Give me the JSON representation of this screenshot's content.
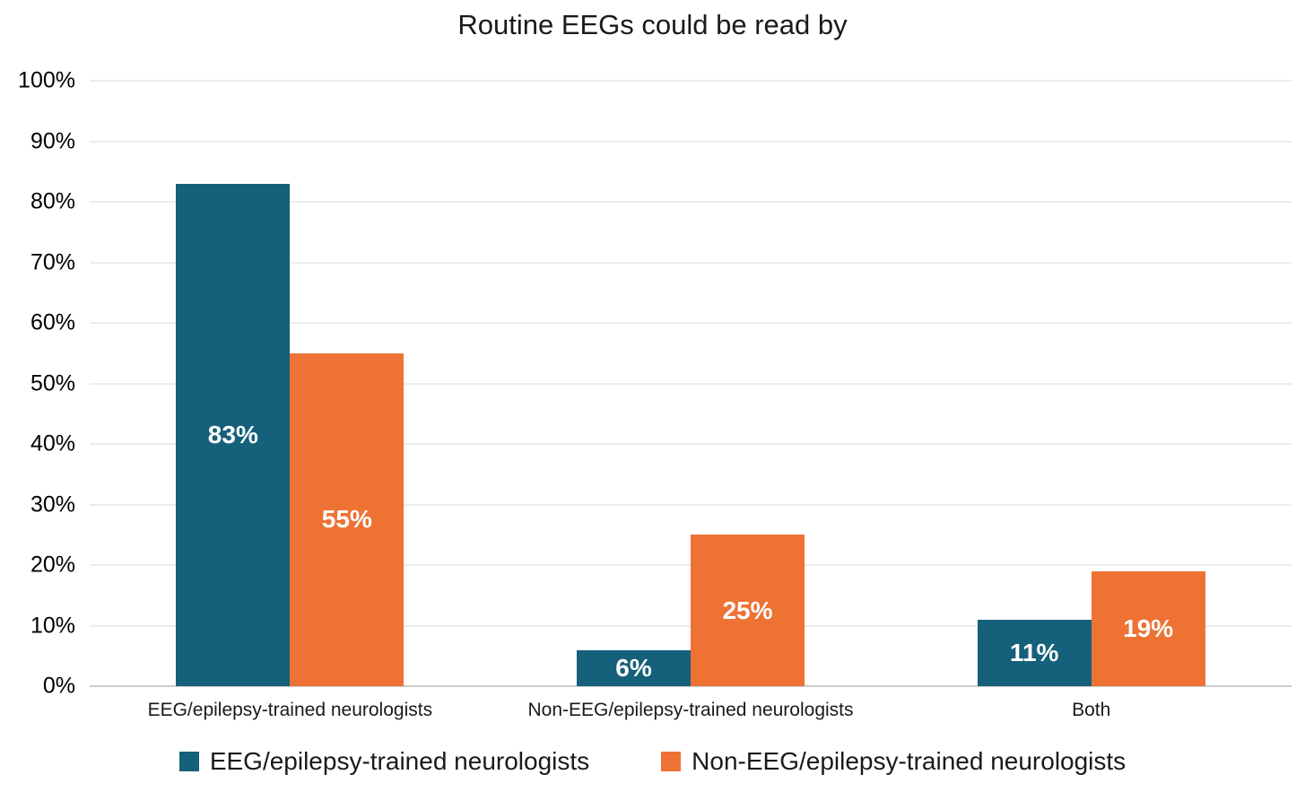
{
  "chart_data": {
    "type": "bar",
    "title": "Routine EEGs could be read by",
    "categories": [
      "EEG/epilepsy-trained neurologists",
      "Non-EEG/epilepsy-trained neurologists",
      "Both"
    ],
    "series": [
      {
        "name": "EEG/epilepsy-trained neurologists",
        "color": "#15607A",
        "values": [
          83,
          6,
          11
        ],
        "labels": [
          "83%",
          "6%",
          "11%"
        ]
      },
      {
        "name": "Non-EEG/epilepsy-trained neurologists",
        "color": "#ED7234",
        "values": [
          55,
          25,
          19
        ],
        "labels": [
          "55%",
          "25%",
          "19%"
        ]
      }
    ],
    "ylim": [
      0,
      100
    ],
    "yticks": [
      0,
      10,
      20,
      30,
      40,
      50,
      60,
      70,
      80,
      90,
      100
    ],
    "ytick_labels": [
      "0%",
      "10%",
      "20%",
      "30%",
      "40%",
      "50%",
      "60%",
      "70%",
      "80%",
      "90%",
      "100%"
    ],
    "grid": true,
    "legend_position": "bottom"
  },
  "colors": {
    "gridline": "#D9D9D9",
    "baseline": "#9A9A9A",
    "text": "#1A1A1A",
    "data_label": "#FFFFFF",
    "background": "#FFFFFF"
  }
}
